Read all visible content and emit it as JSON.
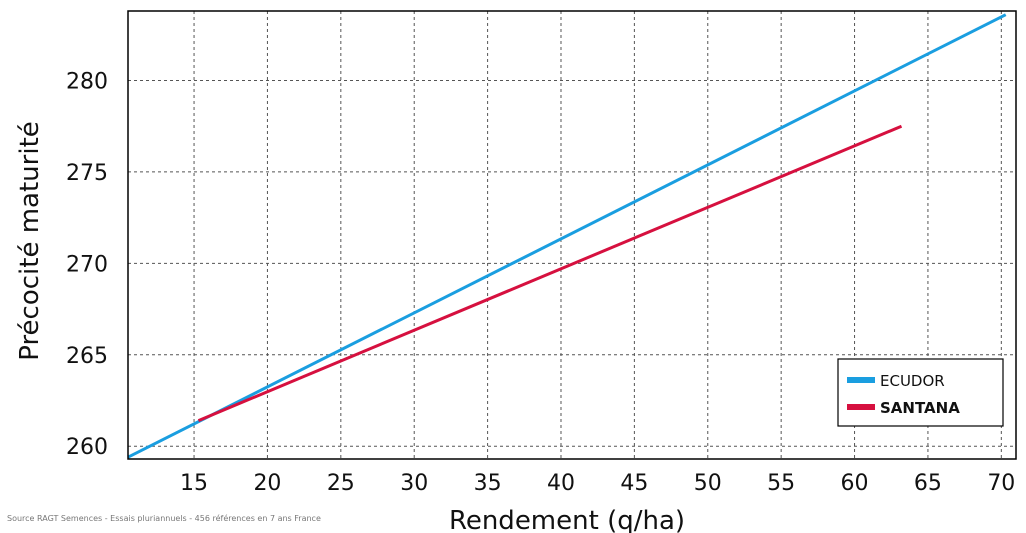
{
  "source_note": "Source RAGT Semences - Essais pluriannuels - 456 références en 7 ans France",
  "chart_data": {
    "type": "line",
    "title": "",
    "xlabel": "Rendement (q/ha)",
    "ylabel": "Précocité maturité",
    "xlim": [
      10.5,
      71
    ],
    "ylim": [
      259.3,
      283.8
    ],
    "x_ticks": [
      15,
      20,
      25,
      30,
      35,
      40,
      45,
      50,
      55,
      60,
      65,
      70
    ],
    "y_ticks": [
      260,
      265,
      270,
      275,
      280
    ],
    "grid": true,
    "grid_style": "dashed",
    "legend_position": "bottom-right",
    "series": [
      {
        "name": "ECUDOR",
        "color": "#1a9ee0",
        "bold": false,
        "x": [
          10.5,
          70.3
        ],
        "y": [
          259.4,
          283.6
        ]
      },
      {
        "name": "SANTANA",
        "color": "#d6103f",
        "bold": true,
        "x": [
          15.3,
          63.2
        ],
        "y": [
          261.4,
          277.5
        ]
      }
    ]
  }
}
